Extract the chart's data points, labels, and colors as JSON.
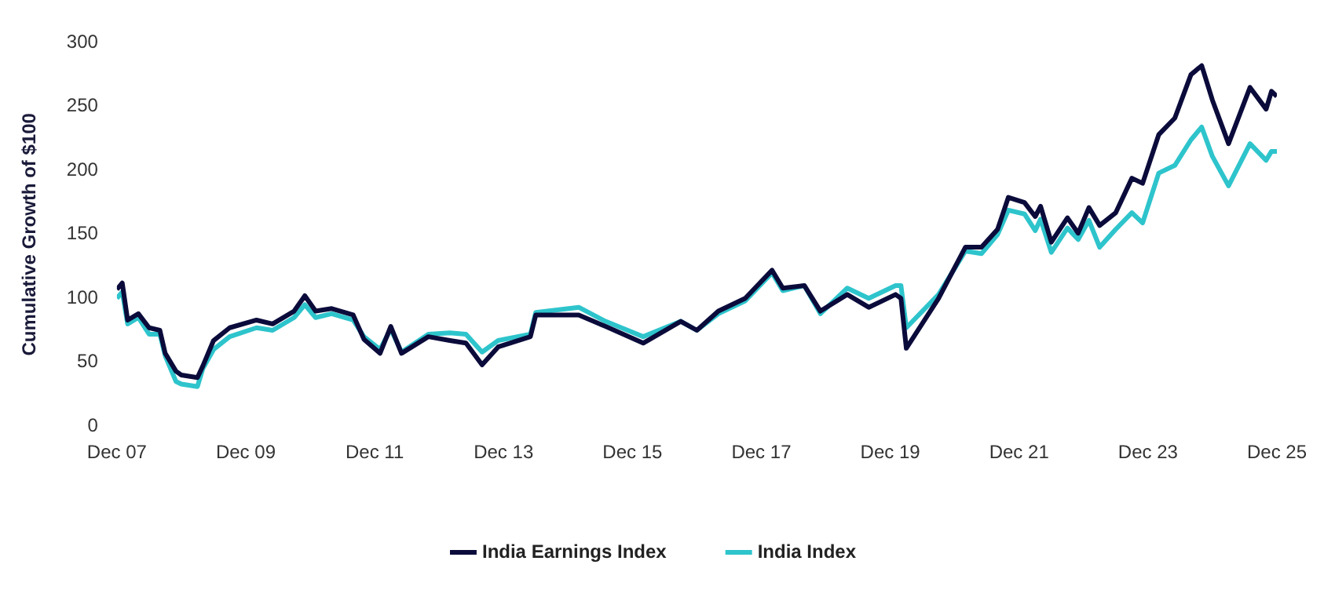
{
  "chart_data": {
    "type": "line",
    "ylabel": "Cumulative Growth of $100",
    "x": [
      "2007-12",
      "2008-01",
      "2008-02",
      "2008-04",
      "2008-06",
      "2008-08",
      "2008-09",
      "2008-11",
      "2008-12",
      "2009-03",
      "2009-04",
      "2009-06",
      "2009-09",
      "2010-02",
      "2010-05",
      "2010-09",
      "2010-11",
      "2011-01",
      "2011-04",
      "2011-08",
      "2011-10",
      "2012-01",
      "2012-03",
      "2012-05",
      "2012-10",
      "2013-02",
      "2013-05",
      "2013-08",
      "2013-11",
      "2014-05",
      "2014-06",
      "2015-02",
      "2015-07",
      "2016-02",
      "2016-09",
      "2016-12",
      "2017-04",
      "2017-09",
      "2018-02",
      "2018-04",
      "2018-08",
      "2018-11",
      "2019-04",
      "2019-08",
      "2020-01",
      "2020-02",
      "2020-03",
      "2020-09",
      "2021-02",
      "2021-05",
      "2021-08",
      "2021-10",
      "2022-01",
      "2022-03",
      "2022-04",
      "2022-06",
      "2022-09",
      "2022-11",
      "2023-01",
      "2023-03",
      "2023-06",
      "2023-09",
      "2023-11",
      "2024-02",
      "2024-05",
      "2024-08",
      "2024-10",
      "2024-12",
      "2025-03",
      "2025-07",
      "2025-10",
      "2025-11",
      "2025-12"
    ],
    "series": [
      {
        "name": "India Earnings Index",
        "color": "#0b0b3b",
        "values": [
          107,
          112,
          83,
          88,
          77,
          75,
          57,
          43,
          40,
          38,
          47,
          67,
          77,
          83,
          80,
          90,
          102,
          90,
          92,
          87,
          68,
          57,
          78,
          57,
          70,
          67,
          65,
          48,
          62,
          70,
          87,
          87,
          78,
          65,
          82,
          75,
          90,
          100,
          122,
          108,
          110,
          90,
          103,
          93,
          103,
          100,
          61,
          100,
          140,
          140,
          154,
          179,
          175,
          164,
          172,
          144,
          163,
          151,
          171,
          157,
          167,
          194,
          190,
          228,
          241,
          275,
          282,
          255,
          221,
          265,
          248,
          262,
          258
        ]
      },
      {
        "name": "India Index",
        "color": "#2ec4cc",
        "values": [
          100,
          105,
          80,
          85,
          72,
          72,
          55,
          35,
          33,
          31,
          45,
          60,
          70,
          77,
          75,
          85,
          95,
          85,
          88,
          83,
          70,
          60,
          76,
          58,
          72,
          73,
          72,
          58,
          67,
          72,
          89,
          93,
          82,
          70,
          82,
          75,
          88,
          98,
          120,
          106,
          110,
          88,
          108,
          100,
          110,
          110,
          77,
          103,
          137,
          135,
          150,
          169,
          166,
          153,
          162,
          136,
          155,
          146,
          161,
          140,
          154,
          167,
          159,
          198,
          204,
          224,
          234,
          211,
          188,
          221,
          208,
          215,
          215
        ]
      }
    ],
    "xlim": [
      "2007-12",
      "2025-12"
    ],
    "xticks": [
      {
        "value": "2007-12",
        "label": "Dec 07"
      },
      {
        "value": "2009-12",
        "label": "Dec 09"
      },
      {
        "value": "2011-12",
        "label": "Dec 11"
      },
      {
        "value": "2013-12",
        "label": "Dec 13"
      },
      {
        "value": "2015-12",
        "label": "Dec 15"
      },
      {
        "value": "2017-12",
        "label": "Dec 17"
      },
      {
        "value": "2019-12",
        "label": "Dec 19"
      },
      {
        "value": "2021-12",
        "label": "Dec 21"
      },
      {
        "value": "2023-12",
        "label": "Dec 23"
      },
      {
        "value": "2025-12",
        "label": "Dec 25"
      }
    ],
    "ylim": [
      0,
      300
    ],
    "yticks": [
      0,
      50,
      100,
      150,
      200,
      250,
      300
    ],
    "grid": false,
    "legend": "bottom",
    "marker": "none",
    "line_style": "solid"
  }
}
